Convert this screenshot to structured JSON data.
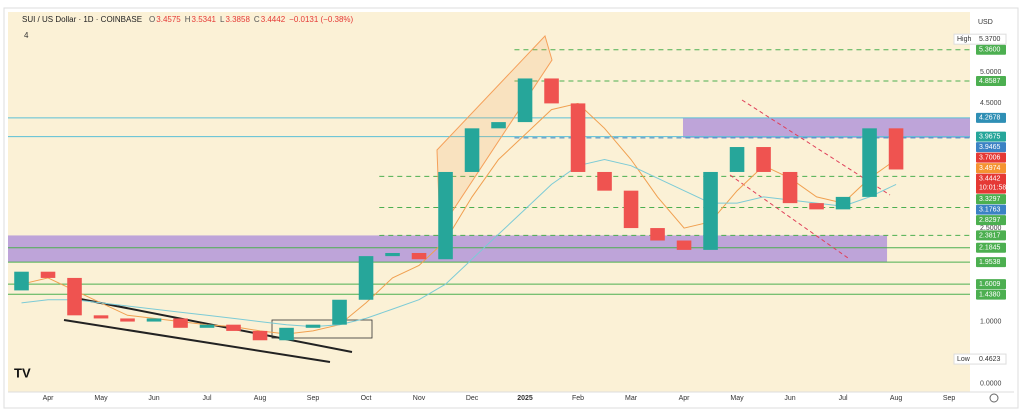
{
  "chart_data": {
    "type": "candlestick",
    "title": "SUI / US Dollar · 1D · COINBASE",
    "header_values": [
      {
        "key": "O",
        "value": "3.4575"
      },
      {
        "key": "H",
        "value": "3.5341"
      },
      {
        "key": "L",
        "value": "3.3858"
      },
      {
        "key": "C",
        "value": "3.4442"
      }
    ],
    "change": "−0.0131 (−0.38%)",
    "currency": "USD",
    "indicator_count": "4",
    "x": [
      1,
      2,
      3,
      4,
      5,
      6,
      7,
      8,
      9,
      10,
      11,
      12,
      13,
      14,
      15,
      16,
      17,
      18,
      19,
      20,
      21,
      22,
      23,
      24,
      25,
      26,
      27,
      28,
      29,
      30,
      31,
      32,
      33,
      34
    ],
    "open": [
      1.5,
      1.8,
      1.7,
      1.1,
      1.05,
      1.0,
      1.05,
      0.9,
      0.95,
      0.85,
      0.7,
      0.9,
      0.95,
      1.35,
      2.05,
      2.1,
      2.0,
      3.4,
      4.1,
      4.2,
      4.9,
      4.5,
      3.4,
      3.1,
      2.5,
      2.3,
      2.15,
      3.4,
      3.8,
      3.4,
      2.9,
      2.8,
      3.0,
      4.1
    ],
    "high": {
      "label": "High",
      "value": 5.37,
      "value_label": "5.3700"
    },
    "low": {
      "label": "Low",
      "value": 0.4623,
      "value_label": "0.4623"
    },
    "close": [
      1.8,
      1.7,
      1.1,
      1.05,
      1.0,
      1.05,
      0.9,
      0.95,
      0.85,
      0.7,
      0.9,
      0.95,
      1.35,
      2.05,
      2.1,
      2.0,
      3.4,
      4.1,
      4.2,
      4.9,
      4.5,
      3.4,
      3.1,
      2.5,
      2.3,
      2.15,
      3.4,
      3.8,
      3.4,
      2.9,
      2.8,
      3.0,
      4.1,
      3.44
    ],
    "up_color": "#26a69a",
    "down_color": "#ef5350",
    "series": [
      {
        "color": "#f0a050",
        "values": [
          1.6,
          1.7,
          1.5,
          1.3,
          1.1,
          1.05,
          1.0,
          0.95,
          0.92,
          0.85,
          0.8,
          0.85,
          0.95,
          1.3,
          1.7,
          1.9,
          2.3,
          3.0,
          3.6,
          4.0,
          4.4,
          4.5,
          4.1,
          3.6,
          3.0,
          2.5,
          2.6,
          3.1,
          3.5,
          3.3,
          3.0,
          2.9,
          3.3,
          3.6
        ]
      },
      {
        "color": "#7ccbd6",
        "values": [
          1.3,
          1.35,
          1.35,
          1.3,
          1.25,
          1.2,
          1.15,
          1.1,
          1.05,
          1.0,
          0.95,
          0.92,
          0.95,
          1.05,
          1.2,
          1.35,
          1.6,
          2.0,
          2.4,
          2.8,
          3.2,
          3.5,
          3.6,
          3.5,
          3.3,
          3.1,
          2.9,
          2.9,
          3.0,
          2.95,
          2.9,
          2.85,
          3.0,
          3.2
        ]
      }
    ],
    "xlim": [
      0.49,
      36.79
    ],
    "xticks": [
      {
        "value": 2,
        "label": "Apr"
      },
      {
        "value": 4,
        "label": "May"
      },
      {
        "value": 6,
        "label": "Jun"
      },
      {
        "value": 8,
        "label": "Jul"
      },
      {
        "value": 10,
        "label": "Aug"
      },
      {
        "value": 12,
        "label": "Sep"
      },
      {
        "value": 14,
        "label": "Oct"
      },
      {
        "value": 16,
        "label": "Nov"
      },
      {
        "value": 18,
        "label": "Dec"
      },
      {
        "value": 20,
        "label": "2025"
      },
      {
        "value": 22,
        "label": "Feb"
      },
      {
        "value": 24,
        "label": "Mar"
      },
      {
        "value": 26,
        "label": "Apr"
      },
      {
        "value": 28,
        "label": "May"
      },
      {
        "value": 30,
        "label": "Jun"
      },
      {
        "value": 32,
        "label": "Jul"
      },
      {
        "value": 34,
        "label": "Aug"
      },
      {
        "value": 36,
        "label": "Sep"
      }
    ],
    "ylim": [
      -0.13,
      5.87
    ],
    "yticks": [
      {
        "value": 0,
        "label": "0.0000"
      },
      {
        "value": 1,
        "label": "1.0000"
      },
      {
        "value": 2.5,
        "label": "2.5000"
      },
      {
        "value": 4.5,
        "label": "4.5000"
      },
      {
        "value": 5,
        "label": "5.0000"
      }
    ],
    "levels": [
      {
        "value": 5.36,
        "label": "5.3600",
        "color": "#4caf50",
        "line": "dashed",
        "x_from": 19.6
      },
      {
        "value": 4.8587,
        "label": "4.8587",
        "color": "#4caf50",
        "line": "dashed",
        "x_from": 19.6
      },
      {
        "value": 4.2678,
        "label": "4.2678",
        "color": "#2f8fb5",
        "line": "solid",
        "line_color": "#5bc0d6"
      },
      {
        "value": 3.9675,
        "label": "3.9675",
        "color": "#26a69a",
        "line": "solid",
        "line_color": "#5bc0d6"
      },
      {
        "value": 3.9465,
        "label": "3.9465",
        "color": "#3b82c4",
        "line": "dashed",
        "x_from": 19.6
      },
      {
        "value": 3.7006,
        "label": "3.7006",
        "color": "#e53935"
      },
      {
        "value": 3.4974,
        "label": "3.4974",
        "color": "#f59331"
      },
      {
        "value": 3.4442,
        "label": "3.4442",
        "color": "#e53935",
        "last": true
      },
      {
        "value": 3.3297,
        "label": "3.3297",
        "color": "#4caf50",
        "line": "dashed",
        "x_from": 14.5
      },
      {
        "value": 3.1763,
        "label": "3.1763",
        "color": "#3b82c4"
      },
      {
        "value": 2.8297,
        "label": "2.8297",
        "color": "#4caf50",
        "line": "dashed",
        "x_from": 14.5
      },
      {
        "value": 2.3817,
        "label": "2.3817",
        "color": "#4caf50",
        "line": "dashed",
        "x_from": 14.5
      },
      {
        "value": 2.1845,
        "label": "2.1845",
        "color": "#4caf50",
        "line": "solid"
      },
      {
        "value": 1.9538,
        "label": "1.9538",
        "color": "#4caf50",
        "line": "solid"
      },
      {
        "value": 1.6009,
        "label": "1.6009",
        "color": "#4caf50",
        "line": "solid"
      },
      {
        "value": 1.438,
        "label": "1.4380",
        "color": "#4caf50",
        "line": "solid"
      }
    ],
    "countdown": "10:01:58",
    "zones": [
      {
        "low": 3.9465,
        "high": 4.2678,
        "x": [
          25.96,
          36.79
        ],
        "color": "#a98ad9"
      },
      {
        "low": 1.9538,
        "high": 2.3817,
        "x": [
          0.49,
          33.66
        ],
        "color": "#a98ad9"
      }
    ]
  }
}
